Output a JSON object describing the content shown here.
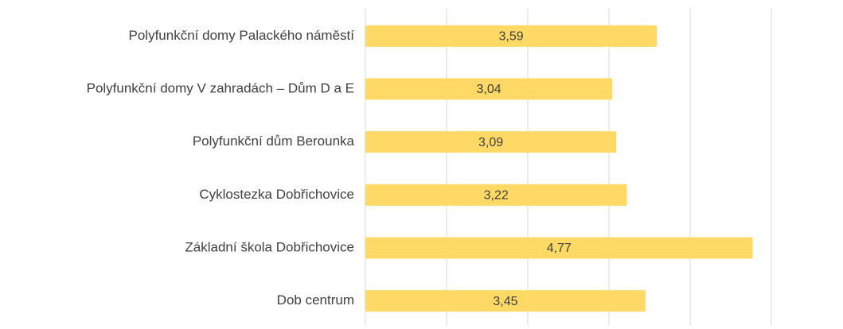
{
  "chart_data": {
    "type": "barh",
    "categories": [
      "Polyfunkční domy Palackého náměstí",
      "Polyfunkční domy V zahradách – Dům D a E",
      "Polyfunkční dům Berounka",
      "Cyklostezka Dobřichovice",
      "Základní škola Dobřichovice",
      "Dob centrum"
    ],
    "values": [
      3.59,
      3.04,
      3.09,
      3.22,
      4.77,
      3.45
    ],
    "value_labels": [
      "3,59",
      "3,04",
      "3,09",
      "3,22",
      "4,77",
      "3,45"
    ],
    "color": "#ffd966",
    "xlim": [
      0,
      5
    ],
    "xticks": [
      0,
      1,
      2,
      3,
      4,
      5
    ],
    "grid": true
  }
}
